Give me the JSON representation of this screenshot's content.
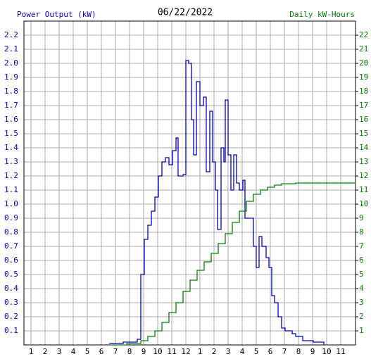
{
  "chart_data": {
    "type": "step-line",
    "title": "06/22/2022",
    "y_label": "Power Output (kW)",
    "y2_label": "Daily kW-Hours",
    "xlim": [
      0.5,
      24.05
    ],
    "xticks": [
      1,
      2,
      3,
      4,
      5,
      6,
      7,
      8,
      9,
      10,
      11,
      12,
      {
        "value": 13,
        "label": "1"
      },
      {
        "value": 14,
        "label": "2"
      },
      {
        "value": 15,
        "label": "3"
      },
      {
        "value": 16,
        "label": "4"
      },
      {
        "value": 17,
        "label": "5"
      },
      {
        "value": 18,
        "label": "6"
      },
      {
        "value": 19,
        "label": "7"
      },
      {
        "value": 20,
        "label": "8"
      },
      {
        "value": 21,
        "label": "9"
      },
      {
        "value": 22,
        "label": "10"
      },
      {
        "value": 23,
        "label": "11"
      }
    ],
    "ylim": [
      0,
      2.3
    ],
    "yticks": [
      0.1,
      0.2,
      0.3,
      0.4,
      0.5,
      0.6,
      0.7,
      0.8,
      0.9,
      {
        "value": 1,
        "label": "1.0"
      },
      1.1,
      1.2,
      1.3,
      1.4,
      1.5,
      1.6,
      1.7,
      1.8,
      1.9,
      {
        "value": 2,
        "label": "2.0"
      },
      2.1,
      2.2
    ],
    "y2lim": [
      0,
      23
    ],
    "y2ticks": [
      1,
      2,
      3,
      4,
      5,
      6,
      7,
      8,
      9,
      10,
      11,
      12,
      13,
      14,
      15,
      16,
      17,
      18,
      19,
      20,
      21,
      22
    ],
    "y_color": "#0000cc",
    "y2_color": "#008000",
    "grid": true,
    "series": [
      {
        "name": "Power Output (kW)",
        "color": "#0000cc",
        "x": [
          6.55,
          7.55,
          8.55,
          8.8,
          9.05,
          9.3,
          9.55,
          9.8,
          10.05,
          10.3,
          10.55,
          10.8,
          11.05,
          11.3,
          11.45,
          11.8,
          12.0,
          12.2,
          12.4,
          12.55,
          12.75,
          13.0,
          13.25,
          13.45,
          13.7,
          13.9,
          14.1,
          14.25,
          14.5,
          14.7,
          14.8,
          15.0,
          15.2,
          15.4,
          15.6,
          15.8,
          16.05,
          16.2,
          16.5,
          16.8,
          17.0,
          17.2,
          17.4,
          17.7,
          17.9,
          18.1,
          18.3,
          18.55,
          18.8,
          19.05,
          19.55,
          19.8,
          20.3,
          21.05,
          21.8
        ],
        "values": [
          0.01,
          0.02,
          0.04,
          0.5,
          0.75,
          0.85,
          0.95,
          1.05,
          1.2,
          1.3,
          1.33,
          1.28,
          1.38,
          1.47,
          1.2,
          1.21,
          2.02,
          2.0,
          1.6,
          1.35,
          1.87,
          1.7,
          1.76,
          1.23,
          1.66,
          1.3,
          1.1,
          0.82,
          1.4,
          1.3,
          1.74,
          1.35,
          1.1,
          1.35,
          1.15,
          1.1,
          1.17,
          0.9,
          0.9,
          0.7,
          0.55,
          0.77,
          0.7,
          0.62,
          0.55,
          0.35,
          0.3,
          0.2,
          0.12,
          0.1,
          0.08,
          0.06,
          0.03,
          0.02,
          0
        ]
      },
      {
        "name": "Daily kW-Hours",
        "color": "#008000",
        "axis": "y2",
        "x": [
          6.55,
          7.8,
          8.8,
          9.3,
          9.8,
          10.3,
          10.8,
          11.3,
          11.8,
          12.3,
          12.8,
          13.3,
          13.8,
          14.3,
          14.8,
          15.3,
          15.8,
          16.3,
          16.8,
          17.3,
          17.8,
          18.3,
          18.8,
          19.8,
          24
        ],
        "values": [
          0,
          0.1,
          0.3,
          0.6,
          1.0,
          1.6,
          2.3,
          3.0,
          3.8,
          4.6,
          5.3,
          5.9,
          6.5,
          7.2,
          7.9,
          8.7,
          9.5,
          10.2,
          10.7,
          11.0,
          11.2,
          11.35,
          11.45,
          11.5,
          11.5
        ]
      }
    ]
  }
}
